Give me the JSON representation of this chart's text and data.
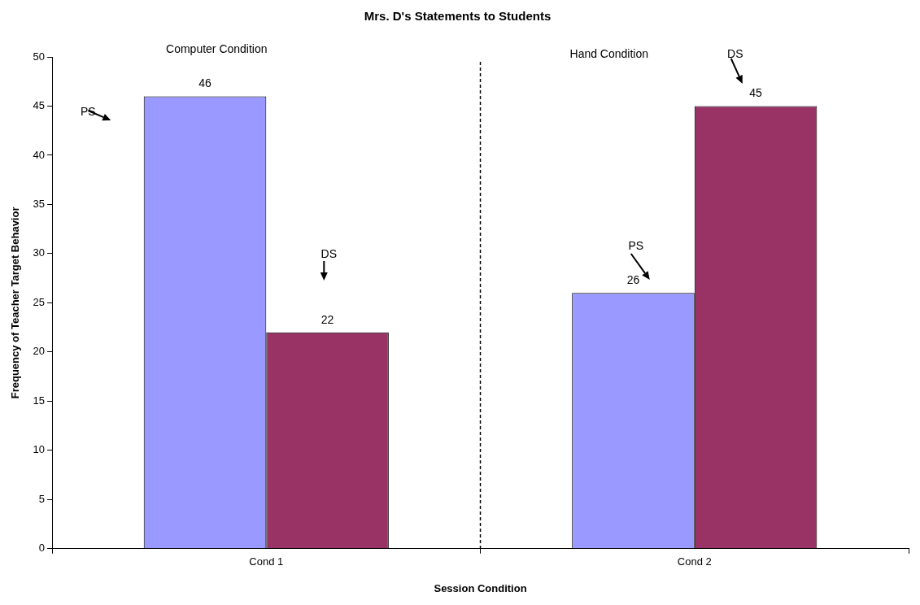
{
  "chart_data": {
    "type": "bar",
    "title": "Mrs. D's Statements to Students",
    "xlabel": "Session Condition",
    "ylabel": "Frequency of Teacher Target Behavior",
    "categories": [
      "Cond 1",
      "Cond 2"
    ],
    "series": [
      {
        "color": "#9999ff",
        "values": [
          46,
          26
        ]
      },
      {
        "color": "#993366",
        "values": [
          22,
          45
        ]
      }
    ],
    "ylim": [
      0,
      50
    ],
    "yticks": [
      0,
      5,
      10,
      15,
      20,
      25,
      30,
      35,
      40,
      45,
      50
    ],
    "grid": false,
    "legend": false,
    "data_labels": true,
    "annotations": [
      "Computer Condition",
      "Hand Condition",
      "PS",
      "DS",
      "PS",
      "DS"
    ]
  }
}
